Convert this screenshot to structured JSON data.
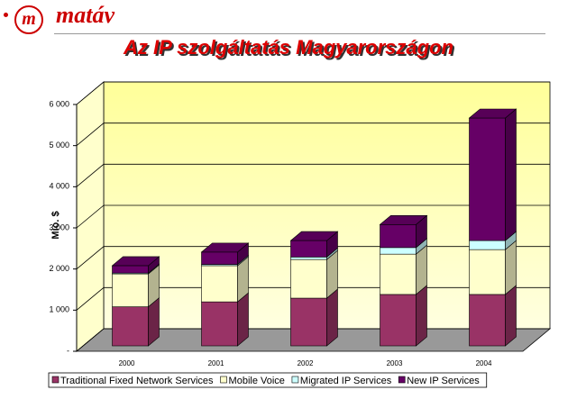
{
  "logo": {
    "mark": "m",
    "text": "matáv"
  },
  "chart_data": {
    "type": "bar3d_stacked",
    "title": "Az IP szolgáltatás Magyarországon",
    "y_label": "Mio. $",
    "categories": [
      "2000",
      "2001",
      "2002",
      "2003",
      "2004"
    ],
    "series": [
      {
        "name": "Traditional Fixed Network Services",
        "color": "#993366",
        "values": [
          950,
          1070,
          1160,
          1250,
          1250
        ]
      },
      {
        "name": "Mobile Voice",
        "color": "#ffffcc",
        "values": [
          800,
          880,
          940,
          980,
          1090
        ]
      },
      {
        "name": "Migrated IP Services",
        "color": "#ccffff",
        "values": [
          20,
          30,
          60,
          160,
          220
        ]
      },
      {
        "name": "New IP Services",
        "color": "#660066",
        "values": [
          180,
          300,
          400,
          560,
          2980
        ]
      }
    ],
    "ylim": [
      0,
      6000
    ],
    "yticks": [
      {
        "value": 0,
        "label": "-"
      },
      {
        "value": 1000,
        "label": "1 000"
      },
      {
        "value": 2000,
        "label": "2 000"
      },
      {
        "value": 3000,
        "label": "3 000"
      },
      {
        "value": 4000,
        "label": "4 000"
      },
      {
        "value": 5000,
        "label": "5 000"
      },
      {
        "value": 6000,
        "label": "6 000"
      }
    ],
    "grid": true,
    "legend": "bottom"
  }
}
